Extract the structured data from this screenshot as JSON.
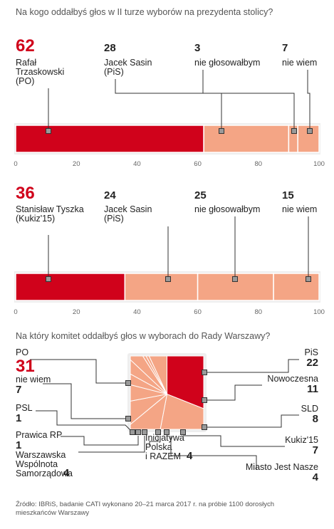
{
  "chart_data": [
    {
      "type": "bar",
      "title": "Na kogo oddałbyś głos w II turze wyborów na prezydenta stolicy?",
      "xlim": [
        0,
        100
      ],
      "ticks": [
        "0",
        "20",
        "40",
        "60",
        "80",
        "100"
      ],
      "segments": [
        {
          "value": 62,
          "value_label": "62",
          "label": "Rafał\nTrzaskowski\n(PO)",
          "color": "#d0021b"
        },
        {
          "value": 28,
          "value_label": "28",
          "label": "Jacek Sasin\n(PiS)",
          "color": "#f4a585"
        },
        {
          "value": 3,
          "value_label": "3",
          "label": "nie głosowałbym",
          "color": "#f4a585"
        },
        {
          "value": 7,
          "value_label": "7",
          "label": "nie wiem",
          "color": "#f4a585"
        }
      ]
    },
    {
      "type": "bar",
      "xlim": [
        0,
        100
      ],
      "ticks": [
        "0",
        "20",
        "40",
        "60",
        "80",
        "100"
      ],
      "segments": [
        {
          "value": 36,
          "value_label": "36",
          "label": "Stanisław Tyszka\n(Kukiz'15)",
          "color": "#d0021b"
        },
        {
          "value": 24,
          "value_label": "24",
          "label": "Jacek Sasin\n(PiS)",
          "color": "#f4a585"
        },
        {
          "value": 25,
          "value_label": "25",
          "label": "nie głosowałbym",
          "color": "#f4a585"
        },
        {
          "value": 15,
          "value_label": "15",
          "label": "nie wiem",
          "color": "#f4a585"
        }
      ]
    },
    {
      "type": "pie",
      "title": "Na który komitet oddałbyś głos w wyborach do Rady Warszawy?",
      "slices": [
        {
          "label": "PO",
          "value": 31,
          "value_label": "31",
          "color": "#d0021b"
        },
        {
          "label": "PiS",
          "value": 22,
          "value_label": "22",
          "color": "#f4a585"
        },
        {
          "label": "Nowoczesna",
          "value": 11,
          "value_label": "11",
          "color": "#f4a585"
        },
        {
          "label": "SLD",
          "value": 8,
          "value_label": "8",
          "color": "#f4a585"
        },
        {
          "label": "Kukiz'15",
          "value": 7,
          "value_label": "7",
          "color": "#f4a585"
        },
        {
          "label": "Miasto Jest Nasze",
          "value": 4,
          "value_label": "4",
          "color": "#f4a585"
        },
        {
          "label": "Inicjatywa\nPolska\ni RAZEM",
          "value": 4,
          "value_label": "4",
          "color": "#f4a585"
        },
        {
          "label": "Warszawska\nWspólnota\nSamorządowa",
          "value": 4,
          "value_label": "4",
          "color": "#f4a585"
        },
        {
          "label": "Prawica RP",
          "value": 1,
          "value_label": "1",
          "color": "#f4a585"
        },
        {
          "label": "PSL",
          "value": 1,
          "value_label": "1",
          "color": "#f4a585"
        },
        {
          "label": "nie wiem",
          "value": 7,
          "value_label": "7",
          "color": "#f4a585"
        }
      ]
    }
  ],
  "source": "Źródło: IBRiS, badanie CATI wykonano 20–21 marca 2017 r. na próbie 1100 dorosłych\nmieszkańców Warszawy",
  "colors": {
    "accent": "#d0021b",
    "light": "#f4a585",
    "axis": "#9a9a9a",
    "frame": "#eeeeee"
  }
}
